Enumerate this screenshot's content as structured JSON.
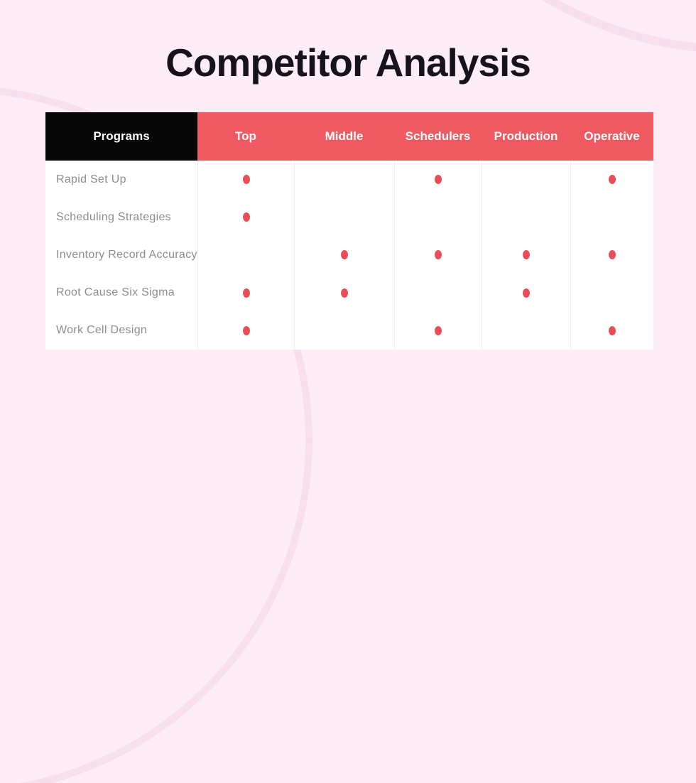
{
  "title": "Competitor Analysis",
  "table": {
    "programs_label": "Programs",
    "columns": [
      "Top",
      "Middle",
      "Schedulers",
      "Production",
      "Operative"
    ],
    "rows": [
      {
        "label": "Rapid Set Up",
        "marks": [
          true,
          false,
          true,
          false,
          true
        ]
      },
      {
        "label": "Scheduling Strategies",
        "marks": [
          true,
          false,
          false,
          false,
          false
        ]
      },
      {
        "label": "Inventory Record Accuracy",
        "marks": [
          false,
          true,
          true,
          true,
          true
        ]
      },
      {
        "label": "Root Cause Six Sigma",
        "marks": [
          true,
          true,
          false,
          true,
          false
        ]
      },
      {
        "label": "Work Cell Design",
        "marks": [
          true,
          false,
          true,
          false,
          true
        ]
      }
    ]
  },
  "colors": {
    "background": "#fcedf6",
    "accent_red": "#ef5a62",
    "dot_red": "#e94e57",
    "header_black": "#070707",
    "label_gray": "#8d8d8d",
    "title_dark": "#17131d",
    "ring_pink": "#f8dfee"
  }
}
